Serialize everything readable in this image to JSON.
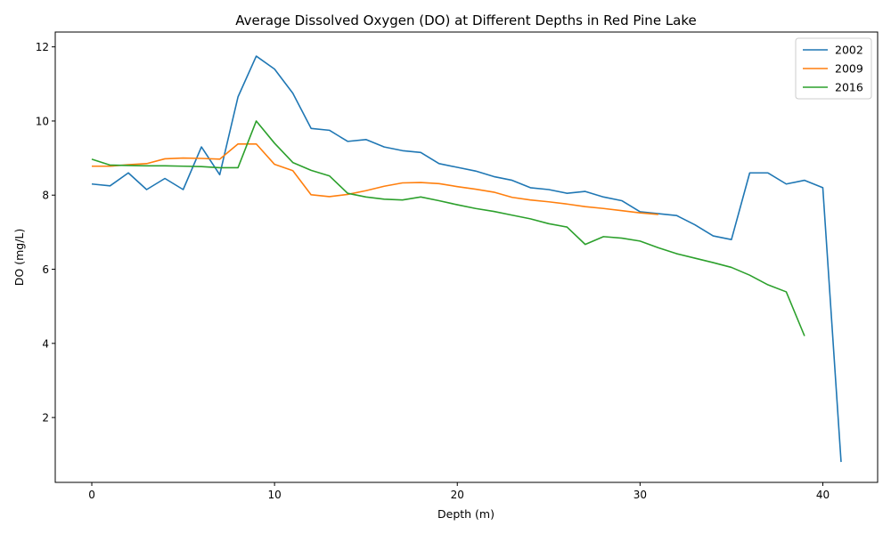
{
  "chart_data": {
    "type": "line",
    "title": "Average Dissolved Oxygen (DO) at Different Depths in Red Pine Lake",
    "xlabel": "Depth (m)",
    "ylabel": "DO (mg/L)",
    "xlim": [
      -2,
      43
    ],
    "ylim": [
      0.25,
      12.4
    ],
    "xticks": [
      0,
      10,
      20,
      30,
      40
    ],
    "yticks": [
      2,
      4,
      6,
      8,
      10,
      12
    ],
    "grid": false,
    "legend": "top-right",
    "series": [
      {
        "name": "2002",
        "color": "#1f77b4",
        "x": [
          0,
          1,
          2,
          3,
          4,
          5,
          6,
          7,
          8,
          9,
          10,
          11,
          12,
          13,
          14,
          15,
          16,
          17,
          18,
          19,
          20,
          21,
          22,
          23,
          24,
          25,
          26,
          27,
          28,
          29,
          30,
          31,
          32,
          33,
          34,
          35,
          36,
          37,
          38,
          39,
          40,
          41
        ],
        "y": [
          8.3,
          8.25,
          8.6,
          8.15,
          8.45,
          8.15,
          9.3,
          8.55,
          10.65,
          11.75,
          11.4,
          10.75,
          9.8,
          9.75,
          9.45,
          9.5,
          9.3,
          9.2,
          9.15,
          8.85,
          8.75,
          8.65,
          8.5,
          8.4,
          8.2,
          8.15,
          8.05,
          8.1,
          7.95,
          7.85,
          7.55,
          7.5,
          7.45,
          7.2,
          6.9,
          6.8,
          8.6,
          8.6,
          8.3,
          8.4,
          8.2,
          0.8
        ]
      },
      {
        "name": "2009",
        "color": "#ff7f0e",
        "x": [
          0,
          1,
          2,
          3,
          4,
          5,
          6,
          7,
          8,
          9,
          10,
          11,
          12,
          13,
          14,
          15,
          16,
          17,
          18,
          19,
          20,
          21,
          22,
          23,
          24,
          25,
          26,
          27,
          28,
          29,
          30,
          31
        ],
        "y": [
          8.78,
          8.78,
          8.82,
          8.85,
          8.98,
          9.0,
          8.99,
          8.97,
          9.38,
          9.38,
          8.83,
          8.66,
          8.01,
          7.96,
          8.02,
          8.12,
          8.24,
          8.33,
          8.34,
          8.31,
          8.23,
          8.16,
          8.08,
          7.94,
          7.87,
          7.82,
          7.76,
          7.69,
          7.64,
          7.58,
          7.52,
          7.48
        ]
      },
      {
        "name": "2016",
        "color": "#2ca02c",
        "x": [
          0,
          1,
          2,
          3,
          4,
          5,
          6,
          7,
          8,
          9,
          10,
          11,
          12,
          13,
          14,
          15,
          16,
          17,
          18,
          19,
          20,
          21,
          22,
          23,
          24,
          25,
          26,
          27,
          28,
          29,
          30,
          31,
          32,
          33,
          34,
          35,
          36,
          37,
          38,
          39
        ],
        "y": [
          8.97,
          8.81,
          8.8,
          8.79,
          8.79,
          8.78,
          8.77,
          8.74,
          8.74,
          10.0,
          9.4,
          8.88,
          8.67,
          8.52,
          8.05,
          7.95,
          7.89,
          7.87,
          7.95,
          7.85,
          7.74,
          7.64,
          7.56,
          7.46,
          7.36,
          7.23,
          7.14,
          6.67,
          6.88,
          6.84,
          6.76,
          6.58,
          6.42,
          6.3,
          6.18,
          6.05,
          5.84,
          5.58,
          5.39,
          4.2
        ]
      }
    ]
  }
}
